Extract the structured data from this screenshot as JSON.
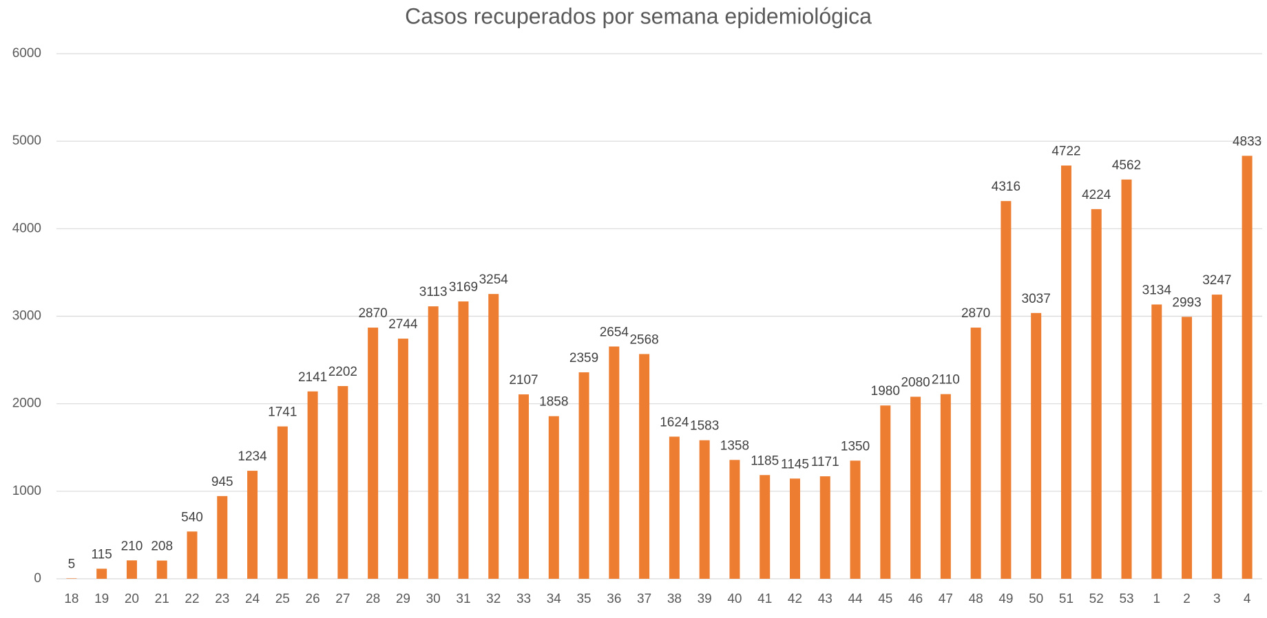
{
  "chart_data": {
    "type": "bar",
    "title": "Casos recuperados por semana epidemiológica",
    "categories": [
      "18",
      "19",
      "20",
      "21",
      "22",
      "23",
      "24",
      "25",
      "26",
      "27",
      "28",
      "29",
      "30",
      "31",
      "32",
      "33",
      "34",
      "35",
      "36",
      "37",
      "38",
      "39",
      "40",
      "41",
      "42",
      "43",
      "44",
      "45",
      "46",
      "47",
      "48",
      "49",
      "50",
      "51",
      "52",
      "53",
      "1",
      "2",
      "3",
      "4"
    ],
    "values": [
      5,
      115,
      210,
      208,
      540,
      945,
      1234,
      1741,
      2141,
      2202,
      2870,
      2744,
      3113,
      3169,
      3254,
      2107,
      1858,
      2359,
      2654,
      2568,
      1624,
      1583,
      1358,
      1185,
      1145,
      1171,
      1350,
      1980,
      2080,
      2110,
      2870,
      4316,
      3037,
      4722,
      4224,
      4562,
      3134,
      2993,
      3247,
      4833
    ],
    "color": "#ed7d31",
    "ylim": [
      0,
      6000
    ],
    "yticks": [
      0,
      1000,
      2000,
      3000,
      4000,
      5000,
      6000
    ],
    "grid": true
  }
}
